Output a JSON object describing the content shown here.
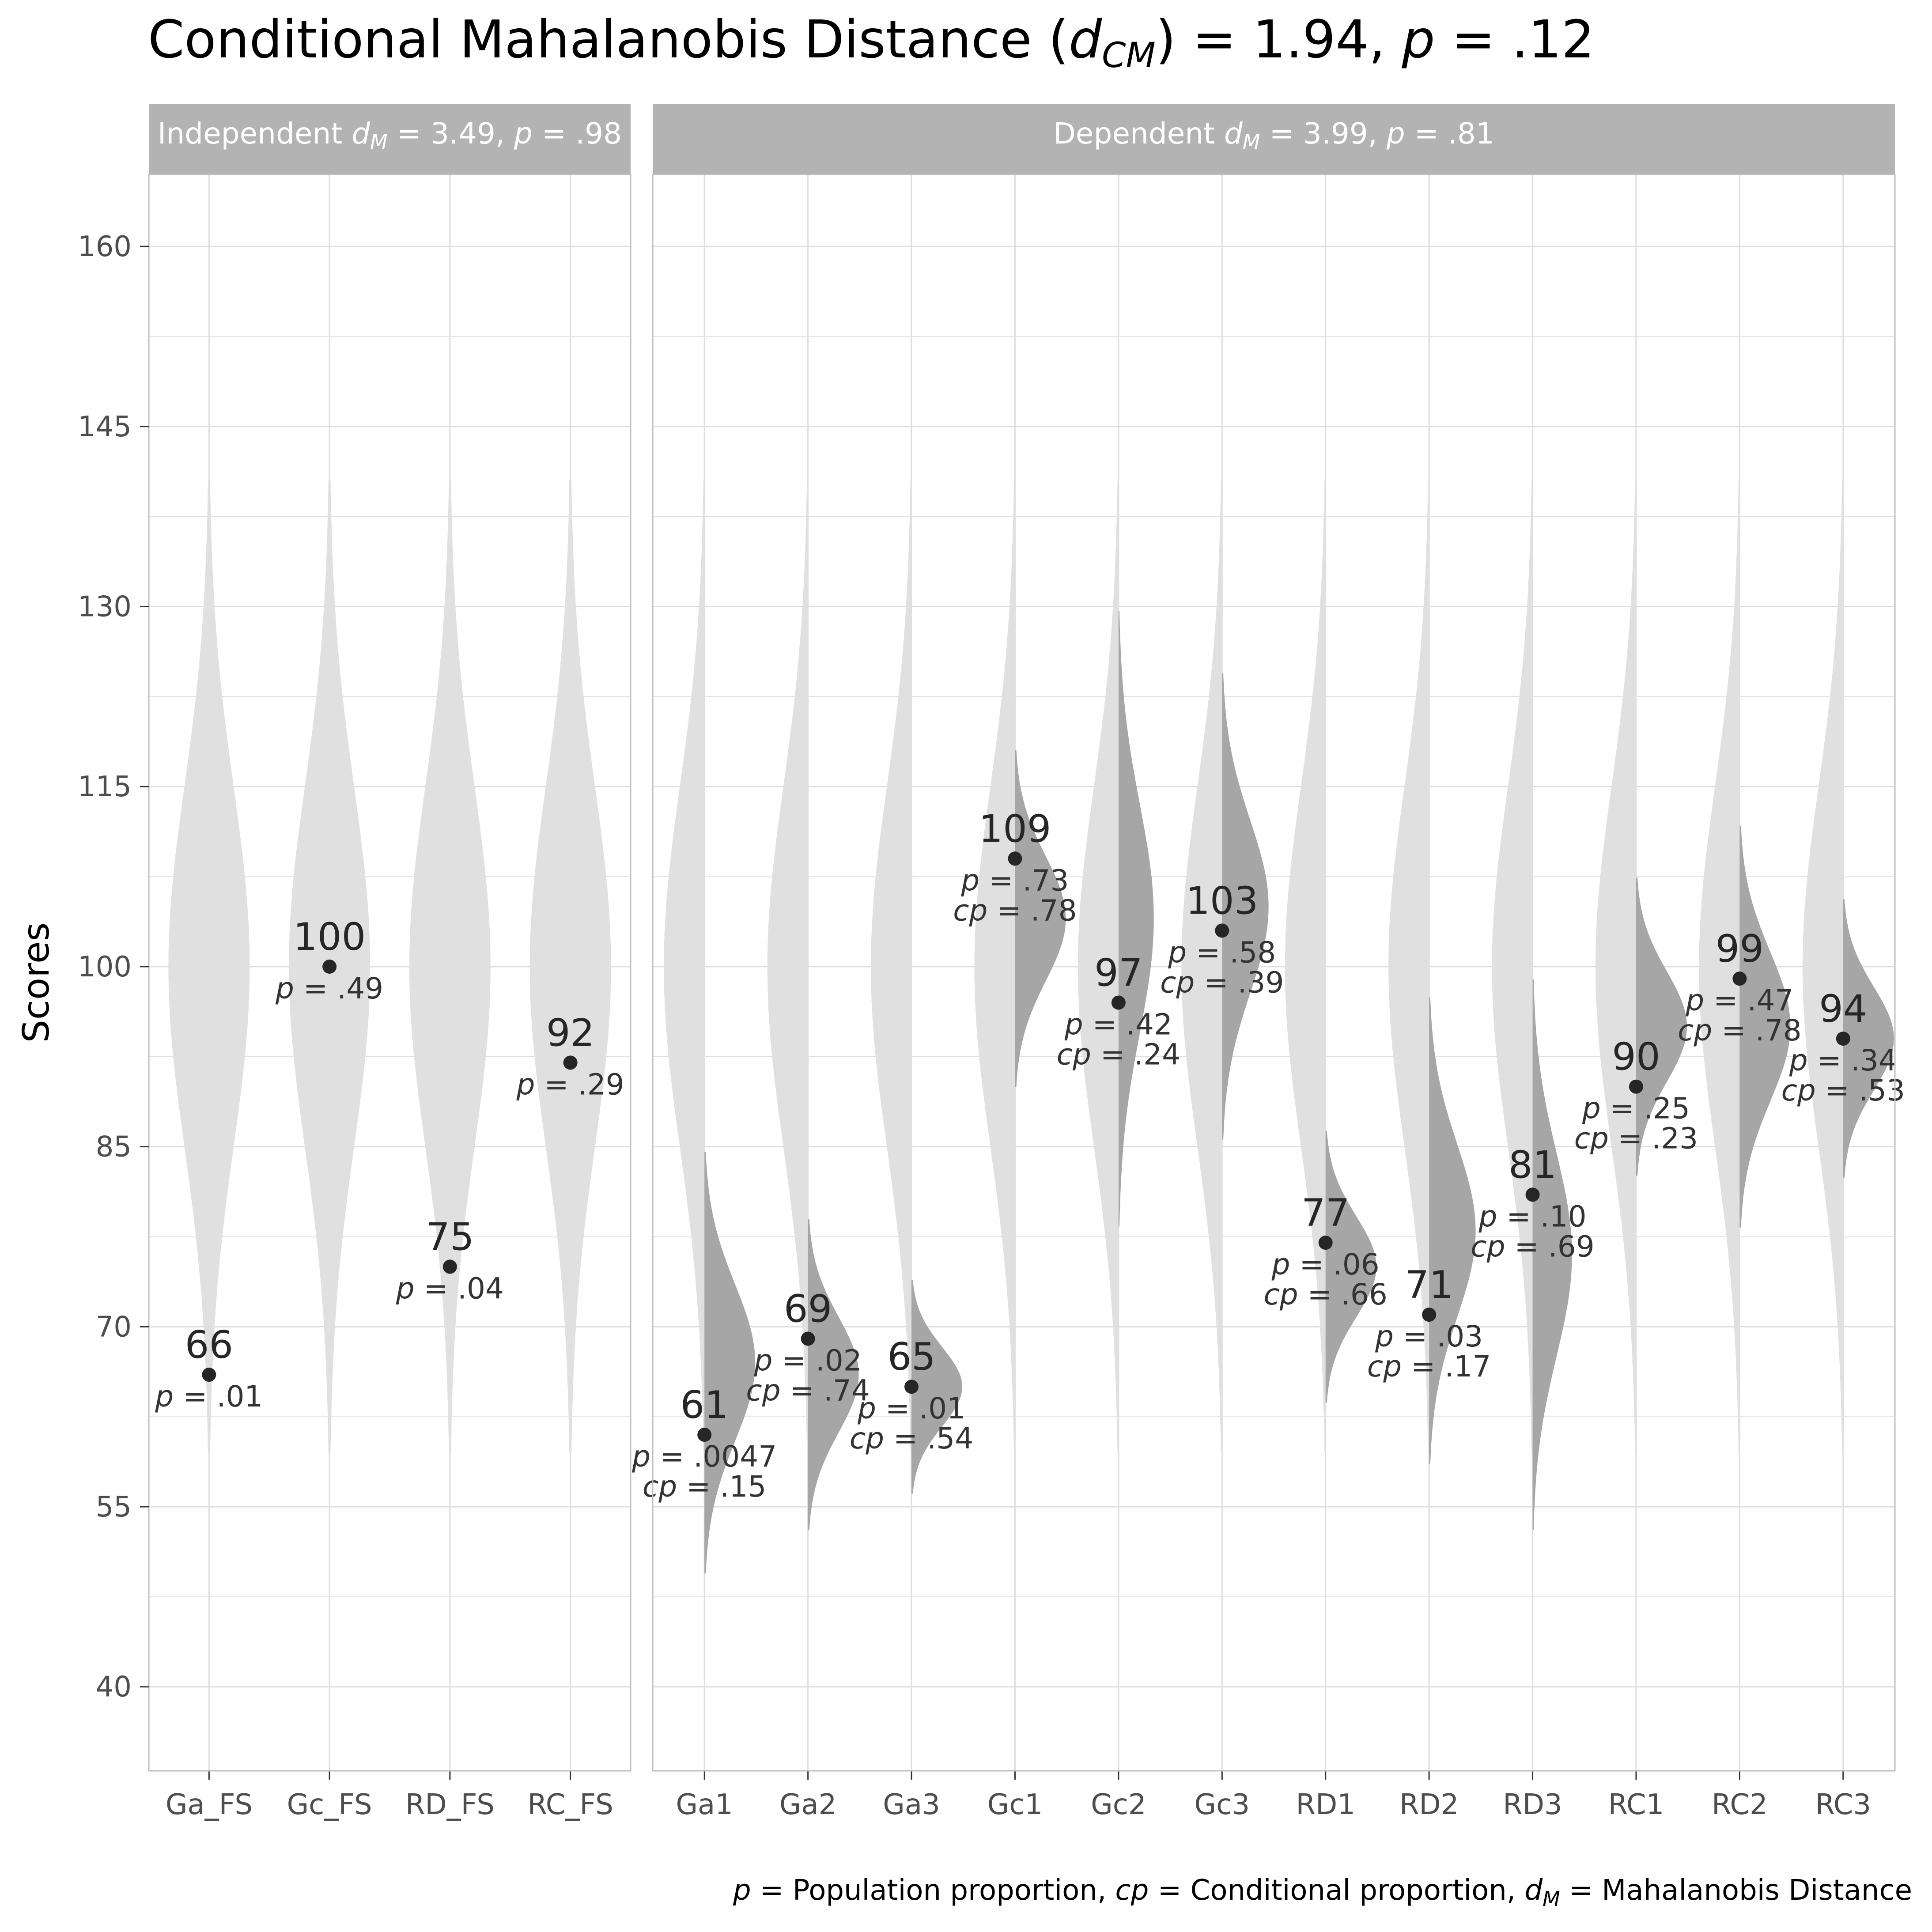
{
  "chart_data": {
    "type": "violin",
    "title": {
      "prefix": "Conditional Mahalanobis Distance ",
      "stat_letter": "d",
      "stat_sub": "CM",
      "equals_value": " = 1.94, ",
      "p_letter": "p",
      "p_value": " = .12"
    },
    "ylabel": "Scores",
    "ylim": [
      33,
      166
    ],
    "yticks": [
      "40",
      "55",
      "70",
      "85",
      "100",
      "115",
      "130",
      "145",
      "160"
    ],
    "caption": {
      "p_letter": "p",
      "p_text": " = Population proportion, ",
      "cp_letter": "cp",
      "cp_text": " = Conditional proportion, ",
      "dm_letter": "d",
      "dm_sub": "M",
      "dm_text": " = Mahalanobis Distance"
    },
    "population": {
      "mean": 100,
      "sd": 15
    },
    "colors": {
      "population_violin": "#e0e0e0",
      "conditional_violin": "#a6a6a6",
      "strip": "#b3b3b3",
      "point": "#262626",
      "grid": "#dedede",
      "border": "#bfbfbf"
    },
    "panels": [
      {
        "name": "Independent",
        "strip": {
          "label": "Independent ",
          "stat_letter": "d",
          "stat_sub": "M",
          "value_text": " = 3.49, ",
          "p_letter": "p",
          "p_value": " = .98"
        },
        "variables": [
          {
            "name": "Ga_FS",
            "score": 66,
            "score_label": "66",
            "p": ".01"
          },
          {
            "name": "Gc_FS",
            "score": 100,
            "score_label": "100",
            "p": ".49"
          },
          {
            "name": "RD_FS",
            "score": 75,
            "score_label": "75",
            "p": ".04"
          },
          {
            "name": "RC_FS",
            "score": 92,
            "score_label": "92",
            "p": ".29"
          }
        ]
      },
      {
        "name": "Dependent",
        "strip": {
          "label": "Dependent ",
          "stat_letter": "d",
          "stat_sub": "M",
          "value_text": " = 3.99, ",
          "p_letter": "p",
          "p_value": " = .81"
        },
        "variables": [
          {
            "name": "Ga1",
            "score": 61,
            "score_label": "61",
            "p": ".0047",
            "cp": ".15",
            "cond_mean": 67,
            "cond_sd": 6.5
          },
          {
            "name": "Ga2",
            "score": 69,
            "score_label": "69",
            "p": ".02",
            "cp": ".74",
            "cond_mean": 66,
            "cond_sd": 4.8
          },
          {
            "name": "Ga3",
            "score": 65,
            "score_label": "65",
            "p": ".01",
            "cp": ".54",
            "cond_mean": 65,
            "cond_sd": 3.3
          },
          {
            "name": "Gc1",
            "score": 109,
            "score_label": "109",
            "p": ".73",
            "cp": ".78",
            "cond_mean": 104,
            "cond_sd": 5.2
          },
          {
            "name": "Gc2",
            "score": 97,
            "score_label": "97",
            "p": ".42",
            "cp": ".24",
            "cond_mean": 104,
            "cond_sd": 9.5
          },
          {
            "name": "Gc3",
            "score": 103,
            "score_label": "103",
            "p": ".58",
            "cp": ".39",
            "cond_mean": 105,
            "cond_sd": 7.2
          },
          {
            "name": "RD1",
            "score": 77,
            "score_label": "77",
            "p": ".06",
            "cp": ".66",
            "cond_mean": 75,
            "cond_sd": 4.2
          },
          {
            "name": "RD2",
            "score": 71,
            "score_label": "71",
            "p": ".03",
            "cp": ".17",
            "cond_mean": 78,
            "cond_sd": 7.2
          },
          {
            "name": "RD3",
            "score": 81,
            "score_label": "81",
            "p": ".10",
            "cp": ".69",
            "cond_mean": 76,
            "cond_sd": 8.5
          },
          {
            "name": "RC1",
            "score": 90,
            "score_label": "90",
            "p": ".25",
            "cp": ".23",
            "cond_mean": 95,
            "cond_sd": 4.6
          },
          {
            "name": "RC2",
            "score": 99,
            "score_label": "99",
            "p": ".47",
            "cp": ".78",
            "cond_mean": 95,
            "cond_sd": 6.2
          },
          {
            "name": "RC3",
            "score": 94,
            "score_label": "94",
            "p": ".34",
            "cp": ".53",
            "cond_mean": 94,
            "cond_sd": 4.3
          }
        ]
      }
    ]
  }
}
